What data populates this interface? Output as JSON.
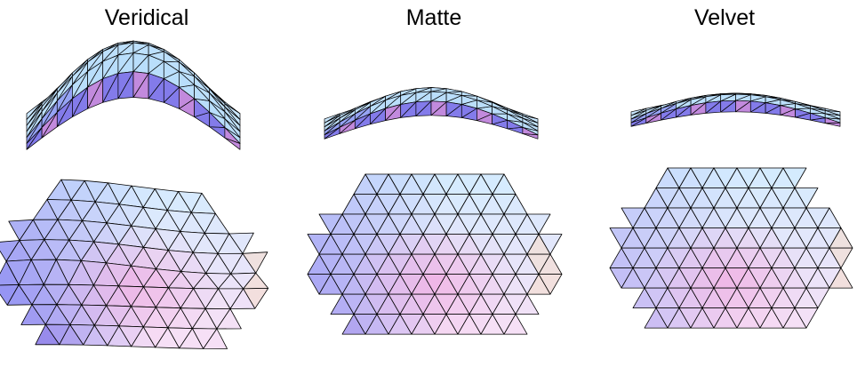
{
  "columns": [
    {
      "title": "Veridical",
      "key": "veridical"
    },
    {
      "title": "Matte",
      "key": "matte"
    },
    {
      "title": "Velvet",
      "key": "velvet"
    }
  ],
  "colors": {
    "light_blue": "#d2ecff",
    "sky_blue": "#a8d4f8",
    "periwinkle": "#8e8ef2",
    "violet": "#6a4fd8",
    "pink": "#f2a9e0",
    "pale_pink": "#f6e0f6",
    "peach": "#f8dcc4",
    "mesh_line": "#000000"
  }
}
